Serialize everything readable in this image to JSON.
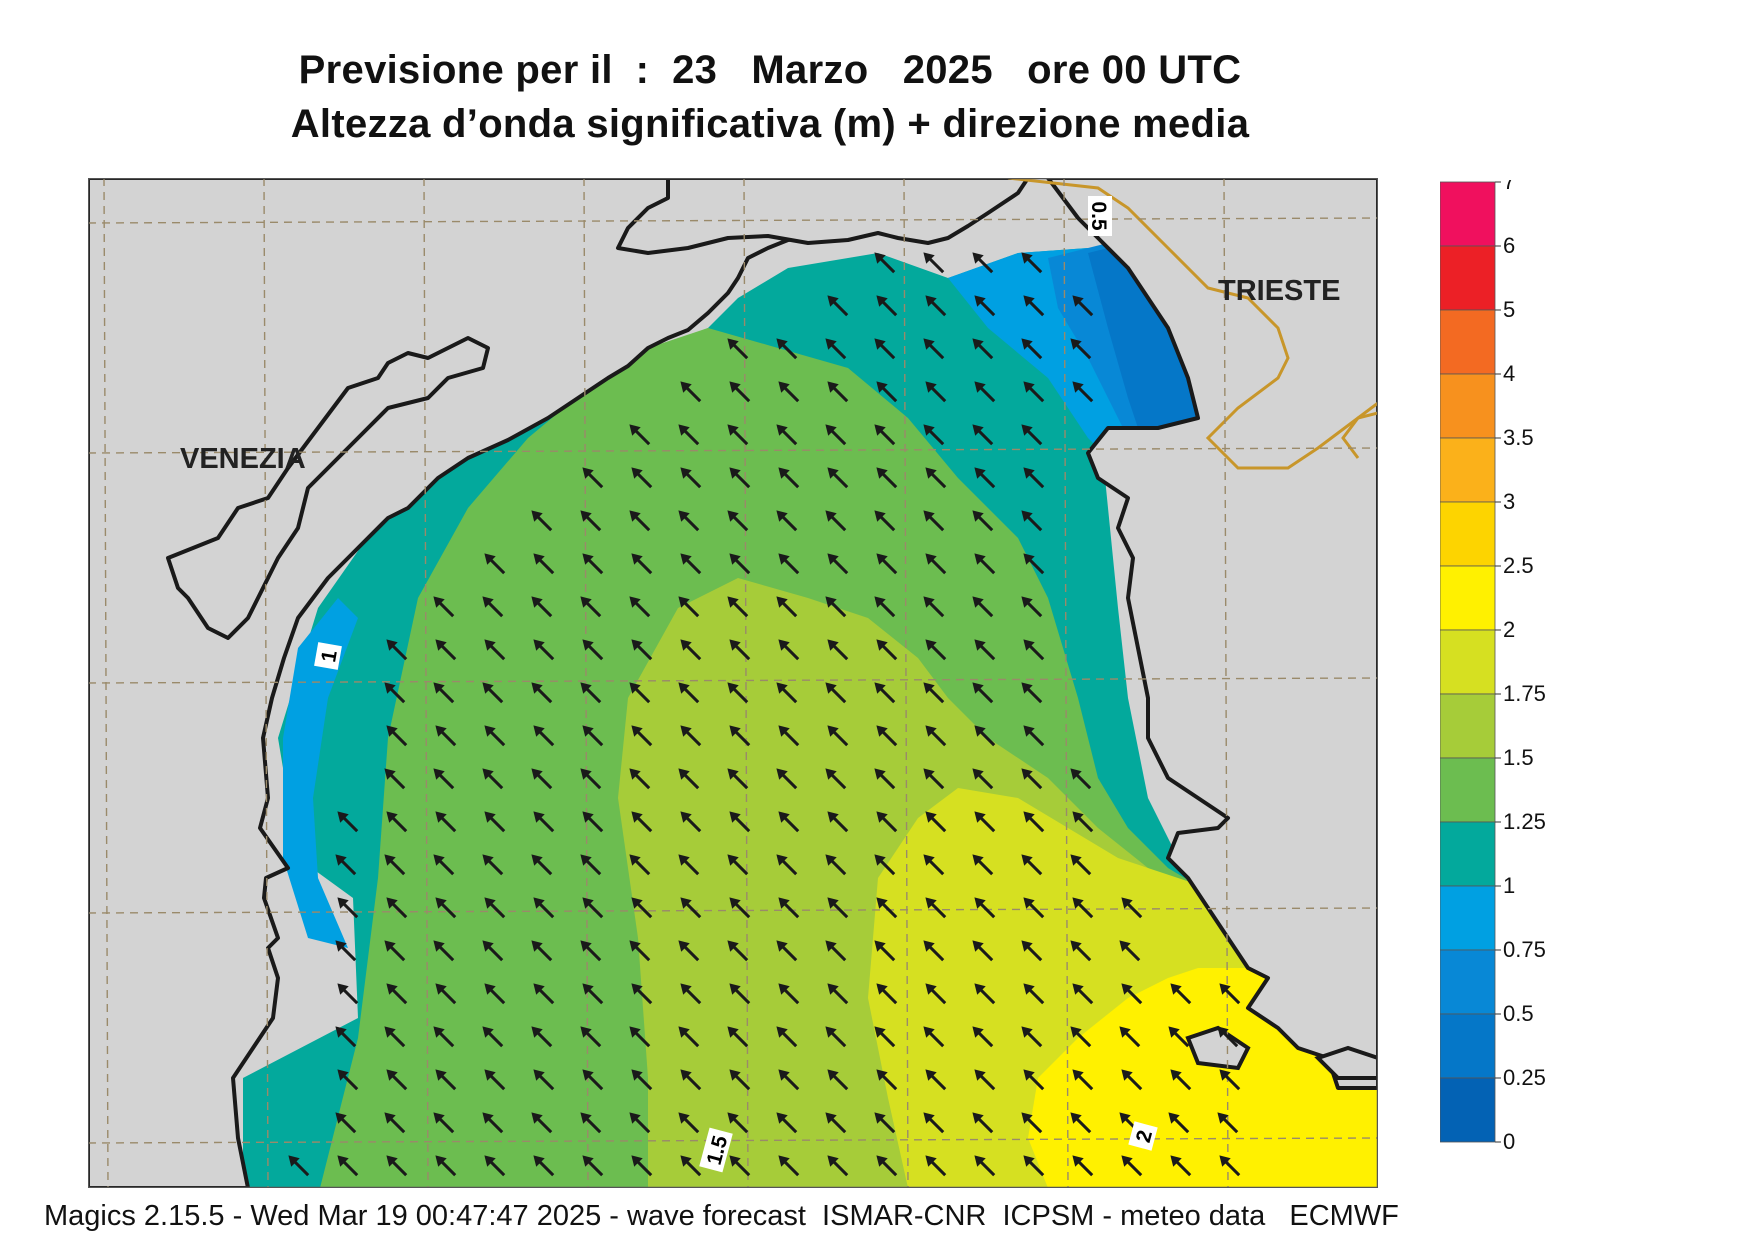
{
  "header": {
    "title_line1": "Previsione per il  :  23   Marzo   2025   ore 00 UTC",
    "title_line2": "Altezza d’onda significativa (m) + direzione media"
  },
  "map": {
    "cities": [
      "VENEZIA",
      "TRIESTE"
    ],
    "contour_labels": [
      "0.5",
      "1",
      "1.5",
      "2"
    ],
    "arrow_direction": "north-west",
    "land_color": "#d3d3d3",
    "coast_color": "#1a1a1a",
    "border_color": "#c8962a",
    "grid": "dashed"
  },
  "legend": {
    "title": "",
    "ticks": [
      "7",
      "6",
      "5",
      "4",
      "3.5",
      "3",
      "2.5",
      "2",
      "1.75",
      "1.5",
      "1.25",
      "1",
      "0.75",
      "0.5",
      "0.25",
      "0"
    ],
    "colors": [
      "#f0105e",
      "#ec2026",
      "#f36a22",
      "#f7911e",
      "#fbb11a",
      "#fdd400",
      "#fff100",
      "#d6e021",
      "#a6cc39",
      "#6cbd50",
      "#03a99c",
      "#00a0e2",
      "#0888d6",
      "#0577c8",
      "#0362b4"
    ]
  },
  "footer": "Magics 2.15.5 - Wed Mar 19 00:47:47 2025 - wave forecast  ISMAR-CNR  ICPSM - meteo data   ECMWF"
}
